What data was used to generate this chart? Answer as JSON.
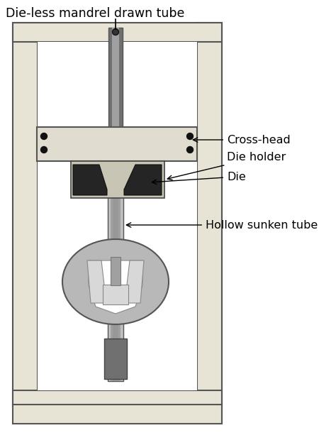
{
  "title": "Die-less mandrel drawn tube",
  "labels": {
    "cross_head": "Cross-head",
    "die_holder": "Die holder",
    "die": "Die",
    "hollow_sunken_tube": "Hollow sunken tube"
  },
  "colors": {
    "background": "#ffffff",
    "frame_fill": "#e8e4d5",
    "frame_border": "#555555",
    "crosshead_fill": "#e0ddd0",
    "crosshead_border": "#555555",
    "die_holder_fill": "#c8c5b5",
    "die_holder_border": "#444444",
    "die_fill": "#252525",
    "die_border": "#111111",
    "rod_light": "#c0bfbe",
    "rod_mid": "#a0a0a0",
    "rod_dark": "#707070",
    "clamp_outer": "#b8b8b8",
    "clamp_inner_fill": "#ffffff",
    "clamp_jaw_light": "#d8d8d8",
    "clamp_jaw_dark": "#a8a8a8",
    "base_dark": "#707070",
    "dot": "#111111"
  },
  "figsize": [
    4.74,
    6.27
  ],
  "dpi": 100
}
